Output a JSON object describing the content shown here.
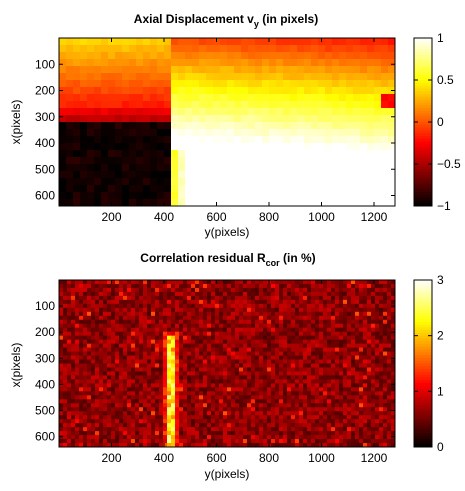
{
  "chart_data": [
    {
      "type": "heatmap",
      "title": "Axial Displacement v",
      "title_sub": "y",
      "title_suffix": " (in pixels)",
      "xlabel": "y(pixels)",
      "ylabel": "x(pixels)",
      "xlim": [
        0,
        1280
      ],
      "ylim": [
        640,
        0
      ],
      "xticks": [
        200,
        400,
        600,
        800,
        1000,
        1200
      ],
      "yticks": [
        100,
        200,
        300,
        400,
        500,
        600
      ],
      "colormap": "hot",
      "clim": [
        -1,
        1
      ],
      "colorbar_ticks": [
        -1,
        -0.5,
        0,
        0.5,
        1
      ],
      "colorbar_tick_labels": [
        "−1",
        "−0.5",
        "0",
        "0.5",
        "1"
      ],
      "field": {
        "description_values": "vy ≈ −1 at bottom-left (y<420, x>350); ≈ 0.9 at bottom-right; ≈ 0 at top-right; ≈ 0.3 at top-left",
        "discontinuity_y": 420,
        "corners": {
          "top_left": 0.35,
          "top_right": -0.1,
          "bottom_left": -0.95,
          "bottom_right": 0.95
        }
      }
    },
    {
      "type": "heatmap",
      "title": "Correlation residual R",
      "title_sub": "cor",
      "title_suffix": " (in %)",
      "xlabel": "y(pixels)",
      "ylabel": "x(pixels)",
      "xlim": [
        0,
        1280
      ],
      "ylim": [
        640,
        0
      ],
      "xticks": [
        200,
        400,
        600,
        800,
        1000,
        1200
      ],
      "yticks": [
        100,
        200,
        300,
        400,
        500,
        600
      ],
      "colormap": "hot",
      "clim": [
        0,
        3
      ],
      "colorbar_ticks": [
        0,
        1,
        2,
        3
      ],
      "colorbar_tick_labels": [
        "0",
        "1",
        "2",
        "3"
      ],
      "field": {
        "background_mean": 0.6,
        "crack_y": 430,
        "crack_x_range": [
          220,
          640
        ],
        "crack_peak": 2.6
      }
    }
  ]
}
